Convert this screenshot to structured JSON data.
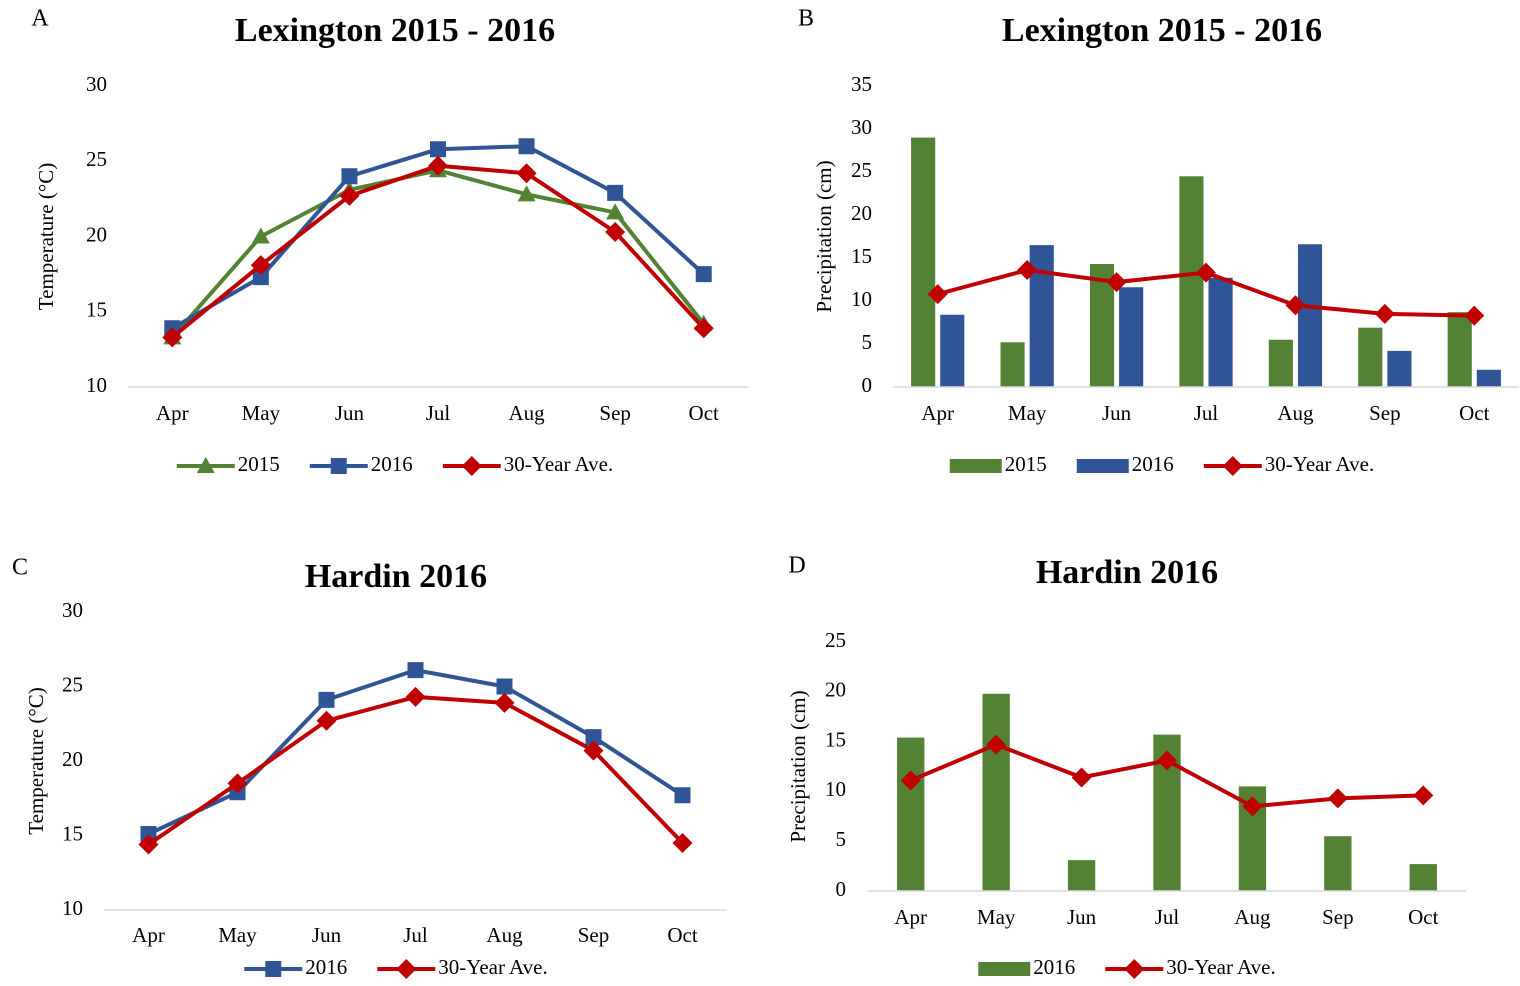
{
  "chart_data": [
    {
      "type": "line",
      "label": "A",
      "title": "Lexington 2015 - 2016",
      "y_label": "Temperature  (°C)",
      "categories": [
        "Apr",
        "May",
        "Jun",
        "Jul",
        "Aug",
        "Sep",
        "Oct"
      ],
      "ylim": [
        10,
        30
      ],
      "yticks": [
        10,
        15,
        20,
        25,
        30
      ],
      "grid": false,
      "legend": "bottom",
      "series": [
        {
          "name": "2015",
          "color": "#548235",
          "type": "line",
          "marker": "triangle",
          "values": [
            13.3,
            20.0,
            23.1,
            24.4,
            22.8,
            21.6,
            14.2
          ]
        },
        {
          "name": "2016",
          "color": "#2f5597",
          "type": "line",
          "marker": "square",
          "values": [
            13.9,
            17.3,
            24.0,
            25.8,
            26.0,
            22.9,
            17.5
          ]
        },
        {
          "name": "30-Year Ave.",
          "color": "#c00000",
          "type": "line",
          "marker": "diamond",
          "values": [
            13.3,
            18.1,
            22.7,
            24.7,
            24.2,
            20.3,
            13.9
          ]
        }
      ]
    },
    {
      "type": "bar",
      "label": "B",
      "title": "Lexington 2015 - 2016",
      "y_label": "Precipitation (cm)",
      "categories": [
        "Apr",
        "May",
        "Jun",
        "Jul",
        "Aug",
        "Sep",
        "Oct"
      ],
      "ylim": [
        0,
        35
      ],
      "yticks": [
        0,
        5,
        10,
        15,
        20,
        25,
        30,
        35
      ],
      "grid": false,
      "legend": "bottom",
      "series": [
        {
          "name": "2015",
          "color": "#548235",
          "type": "bar",
          "values": [
            29.0,
            5.2,
            14.3,
            24.5,
            5.5,
            6.9,
            8.7
          ]
        },
        {
          "name": "2016",
          "color": "#2f5597",
          "type": "bar",
          "values": [
            8.4,
            16.5,
            11.6,
            12.7,
            16.6,
            4.2,
            2.0
          ]
        },
        {
          "name": "30-Year Ave.",
          "color": "#c00000",
          "type": "line",
          "marker": "diamond",
          "values": [
            10.8,
            13.6,
            12.2,
            13.3,
            9.5,
            8.5,
            8.3
          ]
        }
      ]
    },
    {
      "type": "line",
      "label": "C",
      "title": "Hardin 2016",
      "y_label": "Temperature (°C)",
      "categories": [
        "Apr",
        "May",
        "Jun",
        "Jul",
        "Aug",
        "Sep",
        "Oct"
      ],
      "ylim": [
        10,
        30
      ],
      "yticks": [
        10,
        15,
        20,
        25,
        30
      ],
      "grid": false,
      "legend": "bottom",
      "series": [
        {
          "name": "2016",
          "color": "#2f5597",
          "type": "line",
          "marker": "square",
          "values": [
            15.1,
            17.9,
            24.1,
            26.1,
            25.0,
            21.6,
            17.7
          ]
        },
        {
          "name": "30-Year Ave.",
          "color": "#c00000",
          "type": "line",
          "marker": "diamond",
          "values": [
            14.4,
            18.5,
            22.7,
            24.3,
            23.9,
            20.7,
            14.5
          ]
        }
      ]
    },
    {
      "type": "bar",
      "label": "D",
      "title": "Hardin 2016",
      "y_label": "Precipitation (cm)",
      "categories": [
        "Apr",
        "May",
        "Jun",
        "Jul",
        "Aug",
        "Sep",
        "Oct"
      ],
      "ylim": [
        0,
        25
      ],
      "yticks": [
        0,
        5,
        10,
        15,
        20,
        25
      ],
      "grid": false,
      "legend": "bottom",
      "series": [
        {
          "name": "2016",
          "color": "#548235",
          "type": "bar",
          "values": [
            15.4,
            19.8,
            3.1,
            15.7,
            10.5,
            5.5,
            2.7
          ]
        },
        {
          "name": "30-Year Ave.",
          "color": "#c00000",
          "type": "line",
          "marker": "diamond",
          "values": [
            11.1,
            14.7,
            11.4,
            13.1,
            8.5,
            9.3,
            9.6
          ]
        }
      ]
    }
  ]
}
